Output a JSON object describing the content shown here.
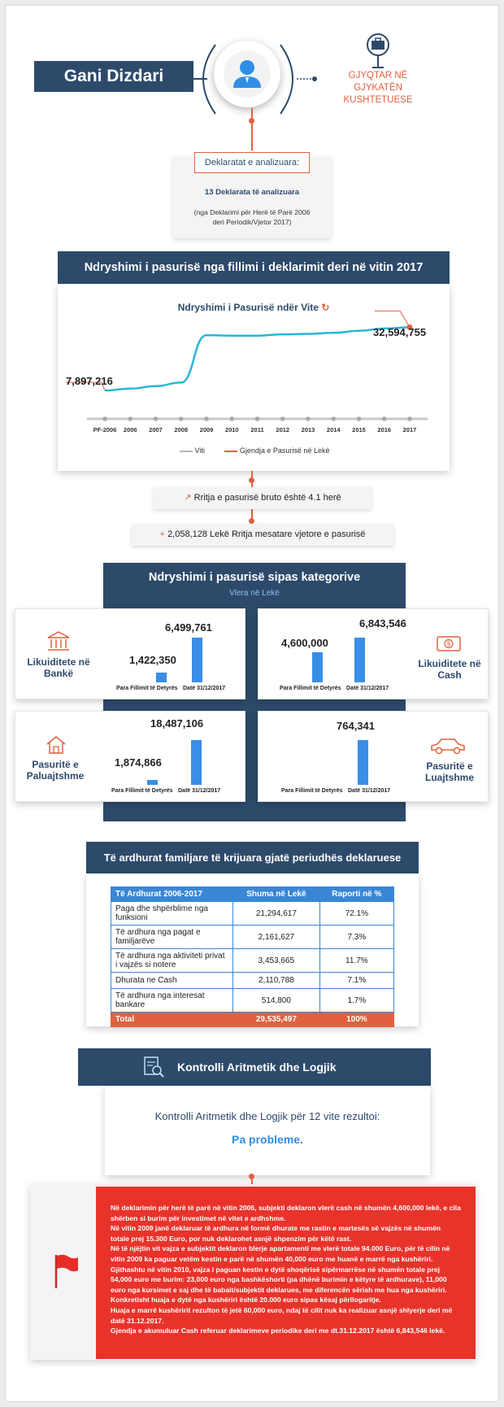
{
  "header": {
    "name": "Gani Dizdari",
    "role": "GJYQTAR NË GJYKATËN KUSHTETUESE"
  },
  "declarations": {
    "title": "Deklaratat e analizuara:",
    "count": "13 Deklarata të analizuara",
    "note": "(nga Deklarimi për Herë të Parë 2006 deri Periodik/Vjetor 2017)"
  },
  "wealth_change": {
    "section_title": "Ndryshimi i pasurisë nga fillimi i deklarimit deri në vitin 2017",
    "chart_title": "Ndryshimi i Pasurisë ndër Vite",
    "start_label": "7,897,216",
    "end_label": "32,594,755",
    "legend_x": "Viti",
    "legend_series": "Gjendja e Pasurisë në Lekë"
  },
  "chart_data": {
    "type": "line",
    "categories": [
      "PF-2006",
      "2006",
      "2007",
      "2008",
      "2009",
      "2010",
      "2011",
      "2012",
      "2013",
      "2014",
      "2015",
      "2016",
      "2017"
    ],
    "series": [
      {
        "name": "Gjendja e Pasurisë në Lekë",
        "values": [
          7897216,
          8600000,
          9600000,
          11000000,
          29500000,
          29300000,
          29300000,
          29800000,
          30000000,
          30400000,
          31200000,
          32100000,
          32594755
        ]
      }
    ],
    "colors": {
      "line": "#29b6d6",
      "axis": "#c8c8c8",
      "marker": "#e2603f"
    }
  },
  "growth": {
    "gross": "Rritja e pasurisë bruto është 4.1 herë",
    "annual": "2,058,128 Lekë Rritja mesatare vjetore e pasurisë"
  },
  "categories_section": {
    "title": "Ndryshimi i pasurisë sipas kategorive",
    "subtitle": "Vlera në Lekë",
    "label_start": "Para Fillimit të Detyrës",
    "label_end": "Datë 31/12/2017",
    "items": [
      {
        "name": "Likuiditete në Bankë",
        "icon": "bank-icon",
        "start": 1422350,
        "end": 6499761,
        "start_label": "1,422,350",
        "end_label": "6,499,761"
      },
      {
        "name": "Likuiditete në Cash",
        "icon": "cash-icon",
        "start": 4600000,
        "end": 6843546,
        "start_label": "4,600,000",
        "end_label": "6,843,546"
      },
      {
        "name": "Pasuritë e Paluajtshme",
        "icon": "house-icon",
        "start": 1874866,
        "end": 18487106,
        "start_label": "1,874,866",
        "end_label": "18,487,106"
      },
      {
        "name": "Pasuritë e Luajtshme",
        "icon": "car-icon",
        "start": 0,
        "end": 764341,
        "start_label": "",
        "end_label": "764,341"
      }
    ]
  },
  "income": {
    "title": "Të ardhurat familjare të krijuara gjatë periudhës deklaruese",
    "headers": [
      "Të Ardhurat 2006-2017",
      "Shuma në Lekë",
      "Raporti në %"
    ],
    "rows": [
      [
        "Paga dhe shpërblime nga funksioni",
        "21,294,617",
        "72.1%"
      ],
      [
        "Të ardhura nga pagat e familjarëve",
        "2,161,627",
        "7.3%"
      ],
      [
        "Të ardhura nga aktiviteti privat i vajzës si notere",
        "3,453,665",
        "11.7%"
      ],
      [
        "Dhurata ne Cash",
        "2,110,788",
        "7.1%"
      ],
      [
        "Të ardhura nga interesat bankare",
        "514,800",
        "1.7%"
      ]
    ],
    "total": [
      "Total",
      "29,535,497",
      "100%"
    ]
  },
  "control": {
    "title": "Kontrolli Aritmetik dhe Logjik",
    "text": "Kontrolli Aritmetik dhe Logjik për 12 vite rezultoi:",
    "result": "Pa probleme."
  },
  "notes": [
    "Në deklarimin për herë të parë në vitin 2006, subjekti deklaron vlerë cash në shumën 4,600,000 lekë, e cila shërben si burim për investimet në vitet e ardhshme.",
    "Në vitin 2009 janë deklaruar të ardhura në formë dhurate me rastin e martesës së vajzës në shumën totale prej 15.300 Euro, por nuk deklarohet asnjë shpenzim për këtë rast.",
    "Në të njëjtin vit vajza e subjektit deklaron blerje apartamenti me vlerë totale 94.000 Euro, për të cilin në vitin 2009 ka paguar vetëm kestin e parë në shumën 40,000 euro me huanë e marrë nga kushëriri.",
    "Gjithashtu në vitin 2010, vajza i paguan kestin e dytë shoqërisë sipërmarrëse në shumën totale prej 54,000 euro me burim: 23,000 euro nga bashkëshorti (pa dhënë burimin e këtyre të ardhurave), 11,000 euro nga kursimet e saj dhe të babait/subjektit deklarues, me diferencën sërish me hua nga kushëriri. Konkretisht huaja e dytë nga kushëriri është 20.000 euro sipas kësaj përllogaritje.",
    "Huaja e marrë kushëririt rezulton të jetë 60,000 euro, ndaj të cilit nuk ka realizuar asnjë shlyerje deri më datë 31.12.2017.",
    "Gjendja e akumuluar Cash referuar deklarimeve periodike deri me dt.31.12.2017 është 6,843,546 lekë."
  ]
}
